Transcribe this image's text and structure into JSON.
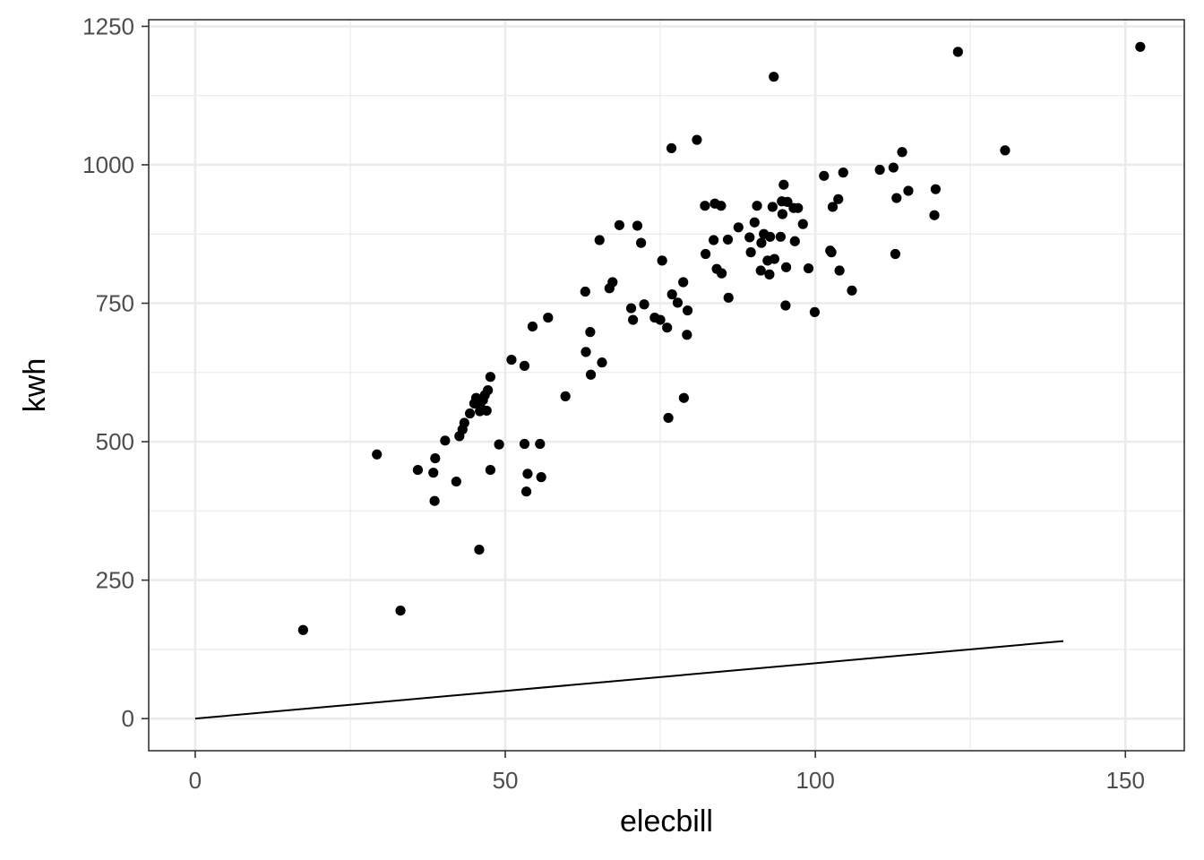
{
  "chart_data": {
    "type": "scatter",
    "title": "",
    "xlabel": "elecbill",
    "ylabel": "kwh",
    "xlim": [
      -7.5,
      159.5
    ],
    "ylim": [
      -58,
      1262
    ],
    "x_ticks": [
      0,
      50,
      100,
      150
    ],
    "y_ticks": [
      0,
      250,
      500,
      750,
      1000,
      1250
    ],
    "x_tick_labels": [
      "0",
      "50",
      "100",
      "150"
    ],
    "y_tick_labels": [
      "0",
      "250",
      "500",
      "750",
      "1000",
      "1250"
    ],
    "grid": true,
    "legend": "none",
    "colors": {
      "points": "#000000",
      "line": "#000000",
      "grid": "#ebebeb",
      "panel_border": "#333333"
    },
    "series": [
      {
        "type": "scatter",
        "points": [
          [
            17.4,
            160
          ],
          [
            29.3,
            477
          ],
          [
            33.1,
            195
          ],
          [
            35.9,
            449
          ],
          [
            38.4,
            444
          ],
          [
            38.6,
            393
          ],
          [
            38.7,
            470
          ],
          [
            40.3,
            502
          ],
          [
            42.1,
            428
          ],
          [
            42.6,
            510
          ],
          [
            43.1,
            522
          ],
          [
            43.4,
            534
          ],
          [
            44.3,
            551
          ],
          [
            45.0,
            569
          ],
          [
            45.3,
            579
          ],
          [
            45.8,
            305
          ],
          [
            45.9,
            555
          ],
          [
            46.0,
            562
          ],
          [
            46.4,
            575
          ],
          [
            46.7,
            584
          ],
          [
            47.0,
            556
          ],
          [
            47.2,
            593
          ],
          [
            47.6,
            617
          ],
          [
            47.6,
            449
          ],
          [
            49.0,
            495
          ],
          [
            51.0,
            648
          ],
          [
            53.1,
            637
          ],
          [
            53.1,
            496
          ],
          [
            53.4,
            410
          ],
          [
            53.6,
            442
          ],
          [
            54.4,
            708
          ],
          [
            55.6,
            496
          ],
          [
            55.8,
            436
          ],
          [
            56.9,
            724
          ],
          [
            59.7,
            582
          ],
          [
            62.9,
            771
          ],
          [
            63.0,
            662
          ],
          [
            63.7,
            698
          ],
          [
            63.8,
            621
          ],
          [
            65.2,
            864
          ],
          [
            65.6,
            643
          ],
          [
            66.8,
            777
          ],
          [
            67.3,
            788
          ],
          [
            68.4,
            891
          ],
          [
            70.3,
            741
          ],
          [
            70.6,
            720
          ],
          [
            71.3,
            890
          ],
          [
            71.9,
            859
          ],
          [
            72.4,
            748
          ],
          [
            74.1,
            724
          ],
          [
            75.0,
            720
          ],
          [
            75.3,
            827
          ],
          [
            76.1,
            706
          ],
          [
            76.3,
            543
          ],
          [
            76.8,
            1030
          ],
          [
            76.9,
            766
          ],
          [
            77.8,
            751
          ],
          [
            78.7,
            788
          ],
          [
            78.8,
            579
          ],
          [
            79.3,
            693
          ],
          [
            79.4,
            737
          ],
          [
            80.9,
            1045
          ],
          [
            82.2,
            926
          ],
          [
            82.3,
            839
          ],
          [
            83.6,
            864
          ],
          [
            83.8,
            930
          ],
          [
            84.1,
            812
          ],
          [
            84.8,
            926
          ],
          [
            84.9,
            804
          ],
          [
            85.9,
            865
          ],
          [
            86.0,
            760
          ],
          [
            87.6,
            887
          ],
          [
            89.4,
            869
          ],
          [
            89.6,
            842
          ],
          [
            90.2,
            896
          ],
          [
            90.6,
            926
          ],
          [
            91.2,
            809
          ],
          [
            91.3,
            859
          ],
          [
            91.7,
            875
          ],
          [
            92.3,
            827
          ],
          [
            92.6,
            802
          ],
          [
            92.7,
            870
          ],
          [
            93.1,
            924
          ],
          [
            93.3,
            1159
          ],
          [
            93.4,
            830
          ],
          [
            94.4,
            870
          ],
          [
            94.6,
            934
          ],
          [
            94.7,
            911
          ],
          [
            94.9,
            964
          ],
          [
            95.2,
            746
          ],
          [
            95.3,
            815
          ],
          [
            95.5,
            933
          ],
          [
            96.5,
            922
          ],
          [
            96.7,
            862
          ],
          [
            97.2,
            922
          ],
          [
            98.0,
            893
          ],
          [
            98.9,
            813
          ],
          [
            99.9,
            734
          ],
          [
            101.4,
            980
          ],
          [
            102.4,
            845
          ],
          [
            102.6,
            842
          ],
          [
            102.8,
            924
          ],
          [
            103.7,
            938
          ],
          [
            103.9,
            809
          ],
          [
            104.5,
            986
          ],
          [
            105.9,
            773
          ],
          [
            110.4,
            991
          ],
          [
            112.6,
            995
          ],
          [
            112.9,
            839
          ],
          [
            113.1,
            940
          ],
          [
            114.0,
            1023
          ],
          [
            115.0,
            953
          ],
          [
            119.2,
            909
          ],
          [
            119.4,
            956
          ],
          [
            123.0,
            1204
          ],
          [
            130.6,
            1026
          ],
          [
            152.4,
            1213
          ]
        ]
      },
      {
        "type": "line",
        "points": [
          [
            0,
            0
          ],
          [
            140,
            140
          ]
        ]
      }
    ]
  }
}
